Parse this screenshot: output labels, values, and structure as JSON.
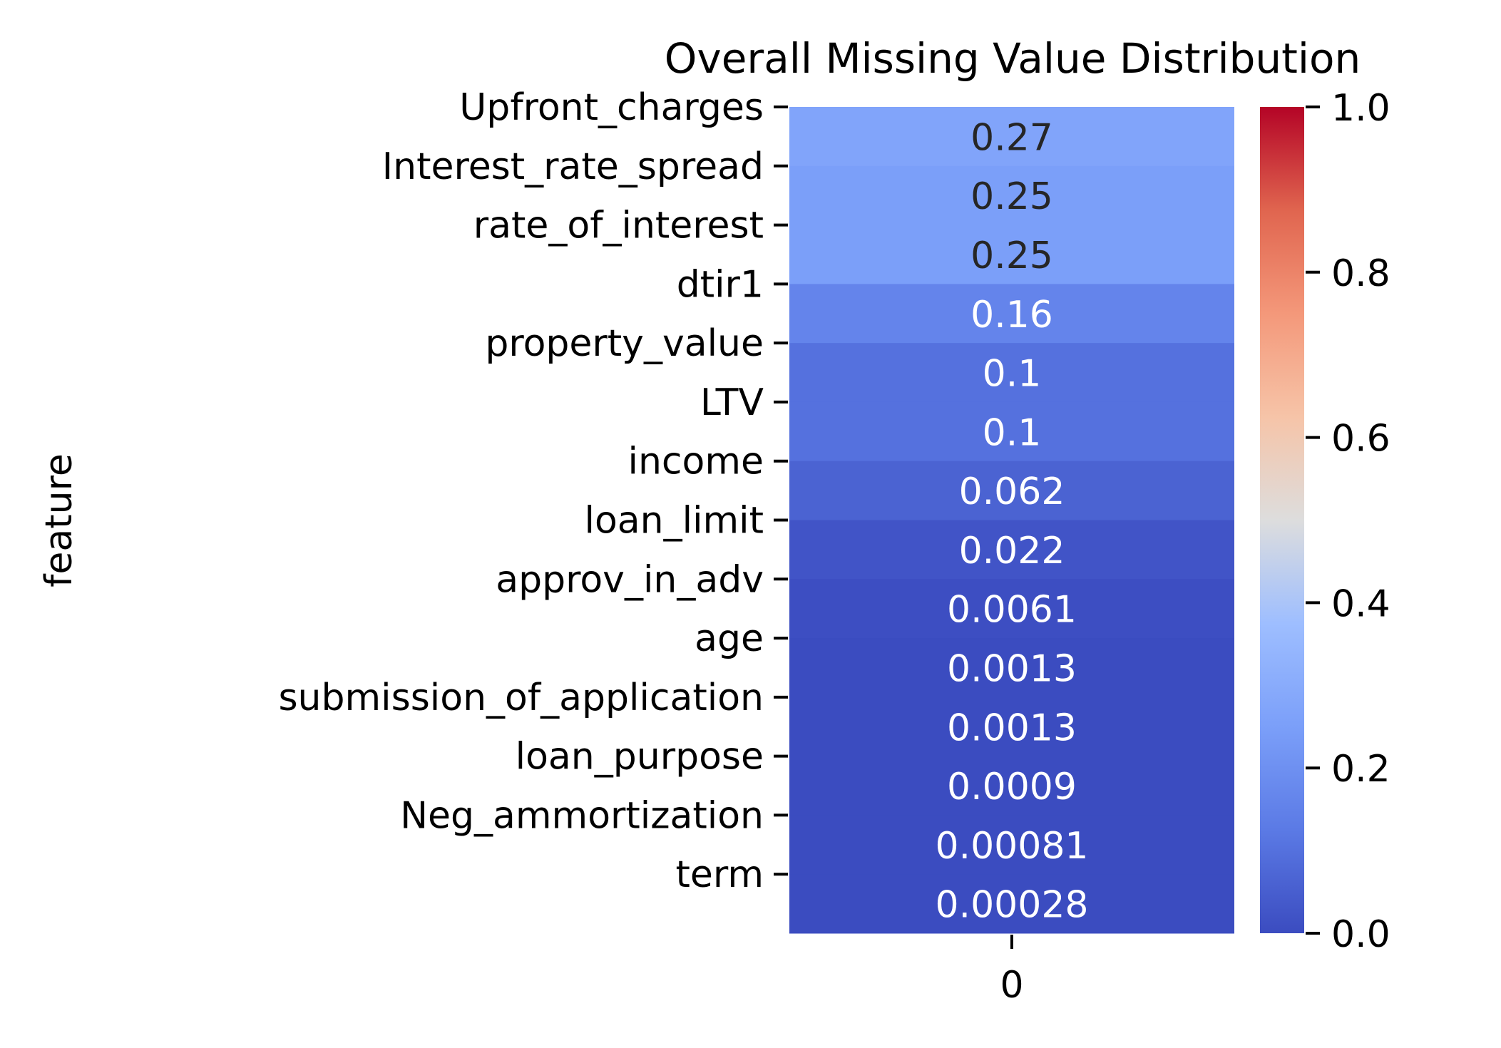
{
  "chart_data": {
    "type": "heatmap",
    "title": "Overall Missing Value Distribution",
    "ylabel": "feature",
    "xlabel": "",
    "x_categories": [
      "0"
    ],
    "rows": [
      {
        "label": "Upfront_charges",
        "value": 0.27,
        "annotation": "0.27"
      },
      {
        "label": "Interest_rate_spread",
        "value": 0.25,
        "annotation": "0.25"
      },
      {
        "label": "rate_of_interest",
        "value": 0.25,
        "annotation": "0.25"
      },
      {
        "label": "dtir1",
        "value": 0.16,
        "annotation": "0.16"
      },
      {
        "label": "property_value",
        "value": 0.1,
        "annotation": "0.1"
      },
      {
        "label": "LTV",
        "value": 0.1,
        "annotation": "0.1"
      },
      {
        "label": "income",
        "value": 0.062,
        "annotation": "0.062"
      },
      {
        "label": "loan_limit",
        "value": 0.022,
        "annotation": "0.022"
      },
      {
        "label": "approv_in_adv",
        "value": 0.0061,
        "annotation": "0.0061"
      },
      {
        "label": "age",
        "value": 0.0013,
        "annotation": "0.0013"
      },
      {
        "label": "submission_of_application",
        "value": 0.0013,
        "annotation": "0.0013"
      },
      {
        "label": "loan_purpose",
        "value": 0.0009,
        "annotation": "0.0009"
      },
      {
        "label": "Neg_ammortization",
        "value": 0.00081,
        "annotation": "0.00081"
      },
      {
        "label": "term",
        "value": 0.00028,
        "annotation": "0.00028"
      }
    ],
    "colorbar": {
      "colormap": "coolwarm",
      "range": [
        0.0,
        1.0
      ],
      "ticks": [
        "0.0",
        "0.2",
        "0.4",
        "0.6",
        "0.8",
        "1.0"
      ]
    },
    "grid": false,
    "legend": "colorbar-right"
  }
}
